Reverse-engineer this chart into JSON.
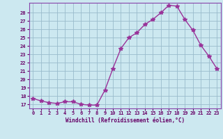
{
  "x": [
    0,
    1,
    2,
    3,
    4,
    5,
    6,
    7,
    8,
    9,
    10,
    11,
    12,
    13,
    14,
    15,
    16,
    17,
    18,
    19,
    20,
    21,
    22,
    23
  ],
  "y": [
    17.7,
    17.4,
    17.2,
    17.1,
    17.3,
    17.3,
    17.0,
    16.9,
    16.9,
    18.7,
    21.3,
    23.7,
    25.0,
    25.6,
    26.6,
    27.2,
    28.0,
    28.9,
    28.8,
    27.2,
    25.9,
    24.1,
    22.8,
    21.3
  ],
  "xlabel": "Windchill (Refroidissement éolien,°C)",
  "ylim": [
    16.5,
    29.2
  ],
  "xlim": [
    -0.5,
    23.5
  ],
  "yticks": [
    17,
    18,
    19,
    20,
    21,
    22,
    23,
    24,
    25,
    26,
    27,
    28
  ],
  "xticks": [
    0,
    1,
    2,
    3,
    4,
    5,
    6,
    7,
    8,
    9,
    10,
    11,
    12,
    13,
    14,
    15,
    16,
    17,
    18,
    19,
    20,
    21,
    22,
    23
  ],
  "line_color": "#993399",
  "bg_color": "#cce8f0",
  "grid_color": "#99bbcc",
  "tick_label_color": "#660066",
  "xlabel_color": "#660066",
  "marker": "*",
  "linewidth": 1.0,
  "markersize": 4,
  "spine_color": "#8844aa"
}
